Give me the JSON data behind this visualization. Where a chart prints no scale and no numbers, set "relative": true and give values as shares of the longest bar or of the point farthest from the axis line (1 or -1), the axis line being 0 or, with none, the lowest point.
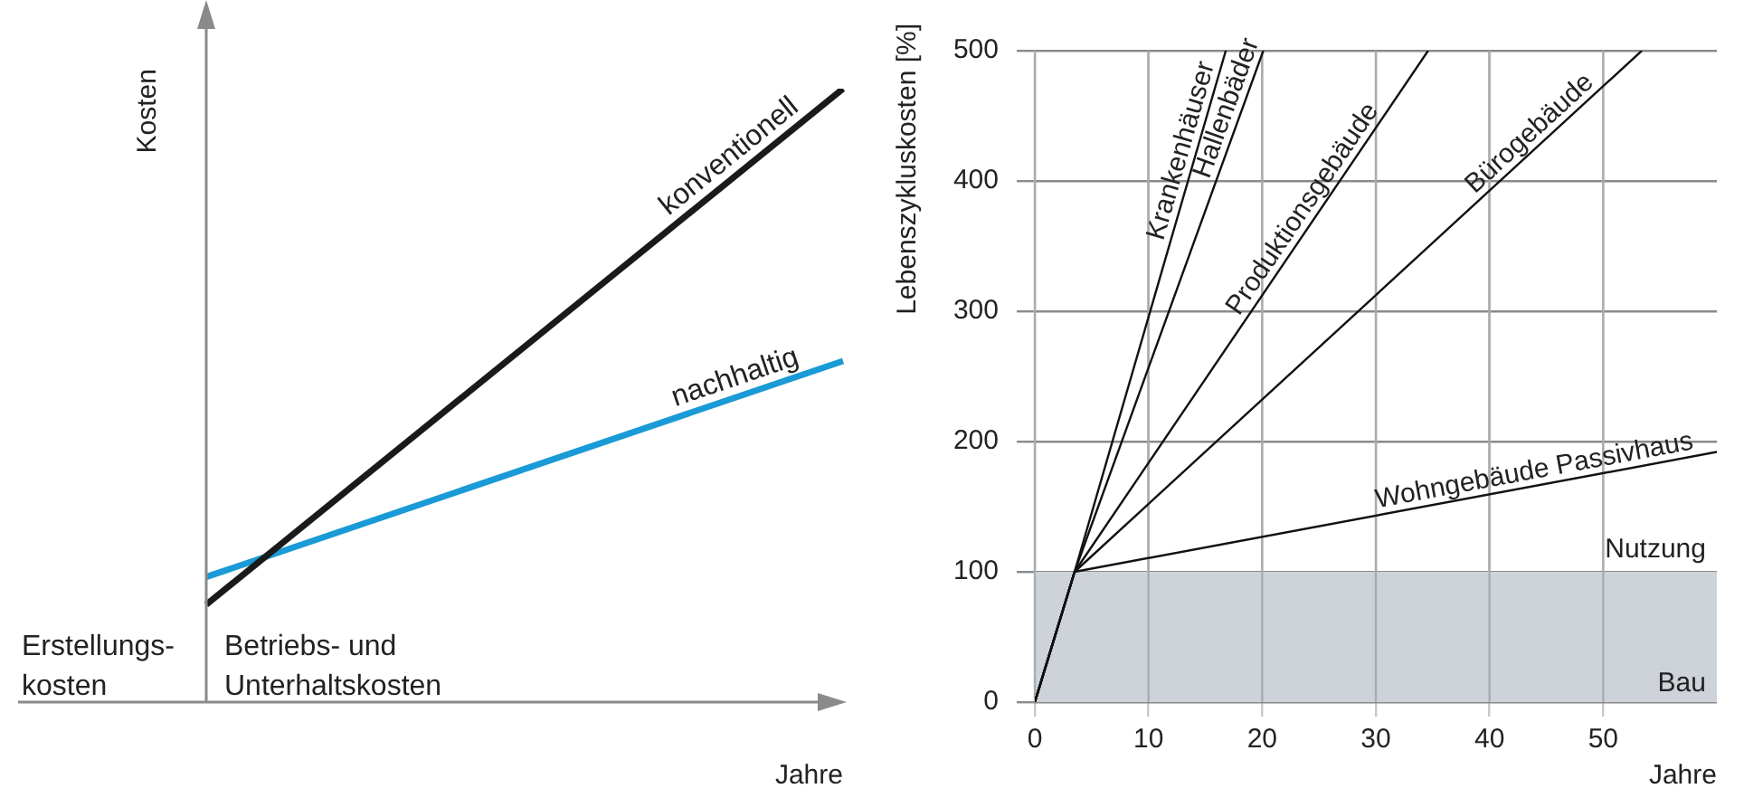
{
  "chart_data": [
    {
      "type": "line",
      "relative": true,
      "categories": [
        null,
        null
      ],
      "xlabel": "Jahre",
      "ylabel": "Kosten",
      "marker": "none",
      "annotations": [
        "Erstellungs-\nkosten",
        "Betriebs- und\nUnterhaltskosten"
      ],
      "series": [
        {
          "name": "konventionell",
          "color": "#1a1a1a",
          "values": [
            0.159,
            1
          ]
        },
        {
          "name": "nachhaltig",
          "color": "#1a9ad6",
          "values": [
            0.204,
            0.556
          ]
        }
      ]
    },
    {
      "type": "line",
      "xlabel": "Jahre",
      "ylabel": "Lebenszykluskosten [%]",
      "xlim": [
        0,
        60
      ],
      "xticks": [
        0,
        10,
        20,
        30,
        40,
        50
      ],
      "ylim": [
        0,
        500
      ],
      "yticks": [
        0,
        100,
        200,
        300,
        400,
        500
      ],
      "grid": true,
      "marker": "none",
      "bands": [
        {
          "axis": "y",
          "from": 0,
          "to": 100,
          "label": "Bau",
          "color": "#cdd3d8"
        }
      ],
      "annotations": [
        {
          "text": "Nutzung",
          "x": 60,
          "y": 100
        }
      ],
      "series": [
        {
          "name": "Krankenhäuser",
          "color": "#111111",
          "x": [
            0,
            3.5,
            16.8
          ],
          "values": [
            0,
            100,
            500
          ]
        },
        {
          "name": "Hallenbäder",
          "color": "#111111",
          "x": [
            0,
            3.5,
            20.1
          ],
          "values": [
            0,
            100,
            500
          ]
        },
        {
          "name": "Produktionsgebäude",
          "color": "#111111",
          "x": [
            0,
            3.5,
            34.6
          ],
          "values": [
            0,
            100,
            500
          ]
        },
        {
          "name": "Bürogebäude",
          "color": "#111111",
          "x": [
            0,
            3.5,
            53.4
          ],
          "values": [
            0,
            100,
            500
          ]
        },
        {
          "name": "Wohngebäude Passivhaus",
          "color": "#111111",
          "x": [
            0,
            3.5,
            60
          ],
          "values": [
            0,
            100,
            192
          ]
        }
      ]
    }
  ]
}
